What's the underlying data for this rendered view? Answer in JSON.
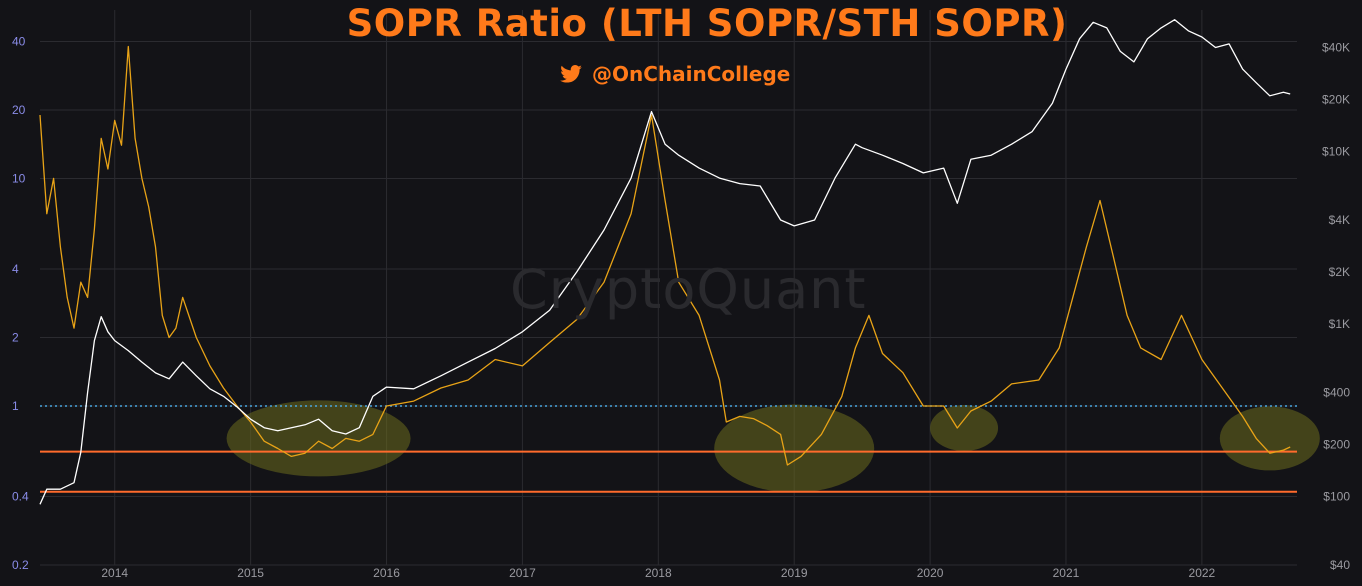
{
  "header": {
    "title": "SOPR Ratio (LTH SOPR/STH SOPR)",
    "handle": "@OnChainCollege",
    "twitter_icon": "twitter-bird-icon",
    "watermark": "CryptoQuant"
  },
  "colors": {
    "background": "#131317",
    "grid": "#2b2b30",
    "sopr_ratio": "#e8a317",
    "btc_price": "#ffffff",
    "baseline": "#4aa8e0",
    "support": "#ff6b2c",
    "highlight": "#6b6b1e",
    "left_ticks": "#8a8ce8",
    "right_ticks": "#9a9aa0",
    "title": "#ff7a1a"
  },
  "chart_data": {
    "type": "line",
    "title": "SOPR Ratio (LTH SOPR/STH SOPR)",
    "x_range": [
      "2013-06",
      "2022-09"
    ],
    "x_ticks": [
      "2014",
      "2015",
      "2016",
      "2017",
      "2018",
      "2019",
      "2020",
      "2021",
      "2022"
    ],
    "left_axis": {
      "scale": "log",
      "ticks": [
        "0.2",
        "0.4",
        "1",
        "2",
        "4",
        "10",
        "20",
        "40"
      ],
      "ylim": [
        0.2,
        55
      ]
    },
    "right_axis": {
      "scale": "log",
      "ticks": [
        "$40",
        "$100",
        "$200",
        "$400",
        "$1K",
        "$2K",
        "$4K",
        "$10K",
        "$20K",
        "$40K"
      ],
      "ylim": [
        40,
        66000
      ]
    },
    "grid": true,
    "series": [
      {
        "axis": "left",
        "x": [
          2013.45,
          2013.5,
          2013.55,
          2013.6,
          2013.65,
          2013.7,
          2013.75,
          2013.8,
          2013.85,
          2013.9,
          2013.95,
          2014.0,
          2014.05,
          2014.1,
          2014.15,
          2014.2,
          2014.25,
          2014.3,
          2014.35,
          2014.4,
          2014.45,
          2014.5,
          2014.6,
          2014.7,
          2014.8,
          2014.9,
          2015.0,
          2015.1,
          2015.2,
          2015.3,
          2015.4,
          2015.5,
          2015.6,
          2015.7,
          2015.8,
          2015.9,
          2016.0,
          2016.2,
          2016.4,
          2016.6,
          2016.8,
          2017.0,
          2017.2,
          2017.4,
          2017.6,
          2017.8,
          2017.95,
          2018.05,
          2018.15,
          2018.3,
          2018.45,
          2018.5,
          2018.6,
          2018.7,
          2018.8,
          2018.9,
          2018.95,
          2019.05,
          2019.2,
          2019.35,
          2019.45,
          2019.55,
          2019.65,
          2019.8,
          2019.95,
          2020.1,
          2020.2,
          2020.3,
          2020.45,
          2020.6,
          2020.8,
          2020.95,
          2021.05,
          2021.15,
          2021.25,
          2021.35,
          2021.45,
          2021.55,
          2021.7,
          2021.85,
          2022.0,
          2022.15,
          2022.3,
          2022.4,
          2022.5,
          2022.6,
          2022.65
        ],
        "values": [
          19,
          7,
          10,
          5,
          3,
          2.2,
          3.5,
          3,
          6,
          15,
          11,
          18,
          14,
          38,
          15,
          10,
          7.5,
          5,
          2.5,
          2,
          2.2,
          3,
          2,
          1.5,
          1.2,
          1,
          0.85,
          0.7,
          0.65,
          0.6,
          0.62,
          0.7,
          0.65,
          0.72,
          0.7,
          0.75,
          1,
          1.05,
          1.2,
          1.3,
          1.6,
          1.5,
          1.9,
          2.4,
          3.5,
          7,
          19,
          8,
          3.5,
          2.5,
          1.3,
          0.85,
          0.9,
          0.88,
          0.82,
          0.75,
          0.55,
          0.6,
          0.75,
          1.1,
          1.8,
          2.5,
          1.7,
          1.4,
          1.0,
          1.0,
          0.8,
          0.95,
          1.05,
          1.25,
          1.3,
          1.8,
          3,
          5,
          8,
          4.5,
          2.5,
          1.8,
          1.6,
          2.5,
          1.6,
          1.2,
          0.9,
          0.72,
          0.62,
          0.64,
          0.66
        ]
      },
      {
        "axis": "right",
        "x": [
          2013.45,
          2013.5,
          2013.6,
          2013.7,
          2013.75,
          2013.8,
          2013.85,
          2013.9,
          2013.95,
          2014.0,
          2014.1,
          2014.2,
          2014.3,
          2014.4,
          2014.5,
          2014.6,
          2014.7,
          2014.8,
          2014.9,
          2015.0,
          2015.1,
          2015.2,
          2015.3,
          2015.4,
          2015.5,
          2015.6,
          2015.7,
          2015.8,
          2015.9,
          2016.0,
          2016.2,
          2016.4,
          2016.6,
          2016.8,
          2017.0,
          2017.2,
          2017.4,
          2017.6,
          2017.8,
          2017.95,
          2018.05,
          2018.15,
          2018.3,
          2018.45,
          2018.6,
          2018.75,
          2018.9,
          2019.0,
          2019.15,
          2019.3,
          2019.45,
          2019.5,
          2019.65,
          2019.8,
          2019.95,
          2020.1,
          2020.2,
          2020.3,
          2020.45,
          2020.6,
          2020.75,
          2020.9,
          2021.0,
          2021.1,
          2021.2,
          2021.3,
          2021.4,
          2021.5,
          2021.6,
          2021.7,
          2021.8,
          2021.9,
          2022.0,
          2022.1,
          2022.2,
          2022.3,
          2022.4,
          2022.5,
          2022.6,
          2022.65
        ],
        "values": [
          90,
          110,
          110,
          120,
          180,
          400,
          800,
          1100,
          900,
          800,
          700,
          600,
          520,
          480,
          600,
          500,
          420,
          380,
          330,
          280,
          250,
          240,
          250,
          260,
          280,
          240,
          230,
          250,
          380,
          430,
          420,
          500,
          600,
          720,
          900,
          1200,
          2000,
          3500,
          7000,
          17000,
          11000,
          9500,
          8000,
          7000,
          6500,
          6300,
          4000,
          3700,
          4000,
          7000,
          11000,
          10500,
          9500,
          8500,
          7500,
          8000,
          5000,
          9000,
          9500,
          11000,
          13000,
          19000,
          30000,
          45000,
          56000,
          52000,
          38000,
          33000,
          45000,
          52000,
          58000,
          50000,
          46000,
          40000,
          42000,
          30000,
          25000,
          21000,
          22000,
          21500
        ]
      }
    ],
    "reference_lines": [
      {
        "value": 1,
        "style": "dotted"
      },
      {
        "value": 0.63,
        "style": "solid"
      },
      {
        "value": 0.42,
        "style": "solid"
      }
    ],
    "highlights": [
      {
        "x": 2015.5,
        "y": 0.72
      },
      {
        "x": 2019.0,
        "y": 0.65
      },
      {
        "x": 2020.25,
        "y": 0.8
      },
      {
        "x": 2022.5,
        "y": 0.72
      }
    ]
  }
}
